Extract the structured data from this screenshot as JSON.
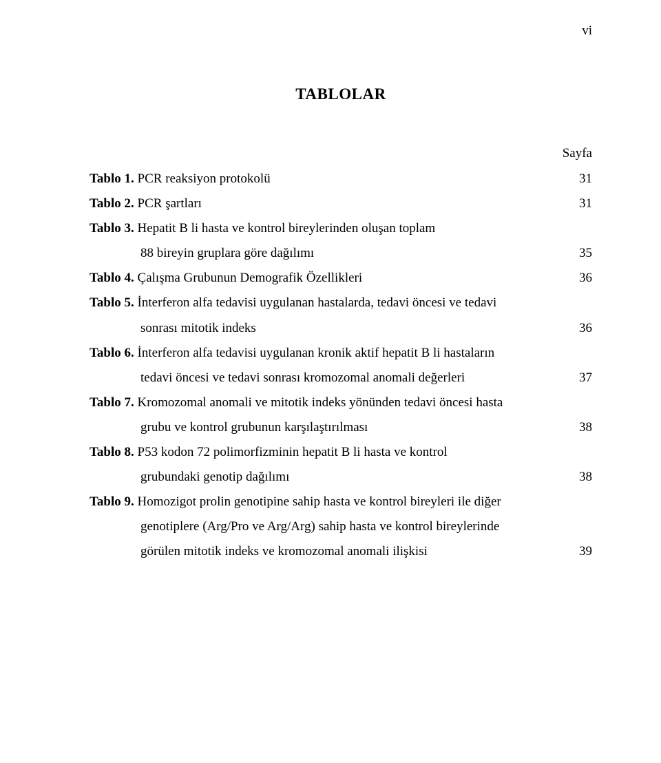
{
  "pageNumberTop": "vi",
  "title": "TABLOLAR",
  "pageHeaderLabel": "Sayfa",
  "entries": [
    {
      "labelPrefix": "Tablo 1. ",
      "firstLine": "PCR reaksiyon protokolü",
      "page": "31",
      "leaderOnFirstLine": true,
      "leaderStyle": "periods"
    },
    {
      "labelPrefix": "Tablo 2. ",
      "firstLine": "PCR şartları",
      "page": "31",
      "leaderOnFirstLine": true,
      "leaderStyle": "ellipsis"
    },
    {
      "labelPrefix": "Tablo 3. ",
      "firstLine": "Hepatit B li hasta ve kontrol bireylerinden oluşan toplam",
      "continuation": "88 bireyin gruplara göre dağılımı",
      "page": "35",
      "leaderOnFirstLine": false,
      "leaderStyle": "ellipsis"
    },
    {
      "labelPrefix": "Tablo 4. ",
      "firstLine": "Çalışma Grubunun Demografik Özellikleri",
      "page": "36",
      "leaderOnFirstLine": true,
      "leaderStyle": "ellipsis"
    },
    {
      "labelPrefix": "Tablo 5. ",
      "firstLine": "İnterferon alfa tedavisi uygulanan hastalarda, tedavi öncesi ve tedavi",
      "continuation": "sonrası mitotik indeks",
      "page": "36",
      "leaderOnFirstLine": false,
      "leaderStyle": "ellipsis"
    },
    {
      "labelPrefix": "Tablo 6. ",
      "firstLine": "İnterferon alfa tedavisi uygulanan kronik aktif hepatit B li hastaların",
      "continuation": "tedavi öncesi ve tedavi sonrası kromozomal anomali değerleri",
      "page": "37",
      "leaderOnFirstLine": false,
      "leaderStyle": "mixed"
    },
    {
      "labelPrefix": "Tablo 7. ",
      "firstLine": "Kromozomal anomali ve mitotik indeks yönünden tedavi öncesi hasta",
      "continuation": "grubu ve kontrol grubunun karşılaştırılması",
      "page": "38",
      "leaderOnFirstLine": false,
      "leaderStyle": "mixed"
    },
    {
      "labelPrefix": "Tablo 8. ",
      "firstLine": "P53 kodon 72 polimorfizminin hepatit B li hasta ve kontrol",
      "continuation": "grubundaki genotip dağılımı",
      "page": "38",
      "leaderOnFirstLine": false,
      "leaderStyle": "mixed"
    },
    {
      "labelPrefix": "Tablo 9. ",
      "firstLine": "Homozigot prolin genotipine sahip hasta ve kontrol bireyleri ile diğer",
      "continuation": "genotiplere (Arg/Pro ve Arg/Arg) sahip hasta ve kontrol bireylerinde",
      "continuation2": "görülen mitotik indeks ve kromozomal anomali ilişkisi",
      "page": "39",
      "leaderOnFirstLine": false,
      "leaderStyle": "mixed"
    }
  ],
  "style": {
    "backgroundColor": "#ffffff",
    "textColor": "#000000",
    "fontFamily": "Times New Roman",
    "bodyFontSize": 19,
    "titleFontSize": 23,
    "pageWidth": 960,
    "pageHeight": 1108
  }
}
